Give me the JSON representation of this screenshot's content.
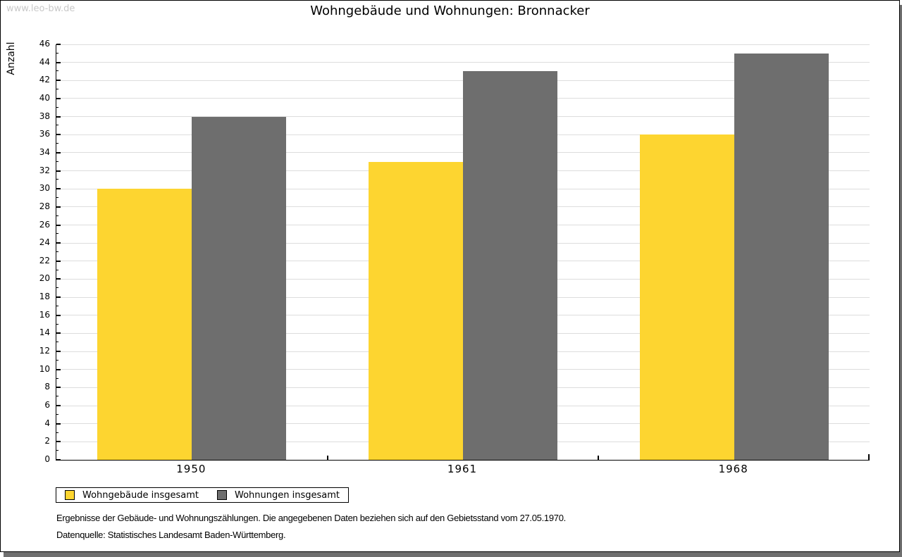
{
  "watermark": "www.leo-bw.de",
  "footer": {
    "line1": "Ergebnisse der Gebäude- und Wohnungszählungen. Die angegebenen Daten beziehen sich auf den Gebietsstand vom 27.05.1970.",
    "line2": "Datenquelle: Statistisches Landesamt Baden-Württemberg."
  },
  "chart_data": {
    "type": "bar",
    "title": "Wohngebäude und Wohnungen: Bronnacker",
    "ylabel": "Anzahl",
    "xlabel": "",
    "categories": [
      "1950",
      "1961",
      "1968"
    ],
    "series": [
      {
        "name": "Wohngebäude insgesamt",
        "color": "#FDD530",
        "values": [
          30,
          33,
          36
        ]
      },
      {
        "name": "Wohnungen insgesamt",
        "color": "#6E6E6E",
        "values": [
          38,
          43,
          45
        ]
      }
    ],
    "ylim": [
      0,
      46
    ],
    "ytick_step": 2,
    "grid": true,
    "legend_position": "bottom-left",
    "gridline_color": "#DDDDDD",
    "axis_color": "#000000"
  }
}
